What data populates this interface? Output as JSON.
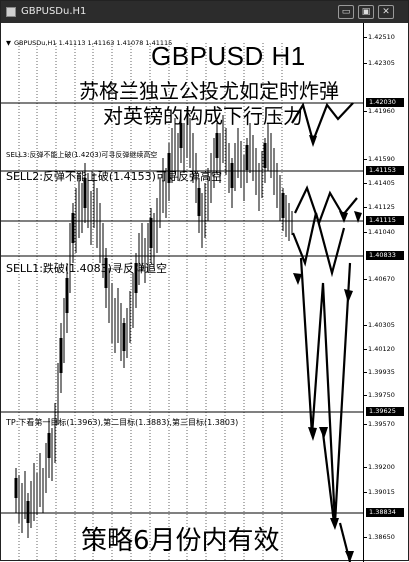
{
  "window": {
    "title": "GBPUSDu.H1",
    "buttons": {
      "minimize": "▭",
      "maximize": "▣",
      "close": "✕"
    }
  },
  "chart": {
    "symbol_line": "GBPUSDu,H1  1.41113 1.41163 1.41078 1.41115",
    "title": "GBPUSD H1",
    "headline_1": "苏格兰独立公投尤如定时炸弹",
    "headline_2": "对英镑的构成下行压力",
    "annotations": {
      "sell3": "SELL3:反弹不能上破(1.4203)可寻反弹继续高空",
      "sell2": "SELL2:反弹不能上破(1.4153)可寻反弹高空",
      "sell1": "SELL1:跌破(1.4083)寻反弹追空",
      "tp": "TP:下看第一目标(1.3963),第二目标(1.3883),第三目标(1.3803)"
    },
    "footer": "策略6月份内有效"
  },
  "axis": {
    "ticks": [
      "1.42510",
      "1.42305",
      "1.42030",
      "1.41960",
      "1.41590",
      "1.41405",
      "1.41125",
      "1.41040",
      "1.40833",
      "1.40670",
      "1.40305",
      "1.40120",
      "1.39935",
      "1.39750",
      "1.39625",
      "1.39570",
      "1.39200",
      "1.39015",
      "1.38834",
      "1.38650"
    ],
    "highlighted": [
      "1.42030",
      "1.41153",
      "1.41115",
      "1.40833",
      "1.39625",
      "1.38834"
    ],
    "highlight_map": {
      "1.42030": "1.42030",
      "1.41590": "1.41153",
      "1.41125": "1.41115",
      "1.40833": "1.40833",
      "1.39625": "1.39625",
      "1.38834": "1.38834"
    }
  },
  "colors": {
    "titlebar": "#2c2c2c",
    "candles": "#000000",
    "background": "#ffffff"
  }
}
